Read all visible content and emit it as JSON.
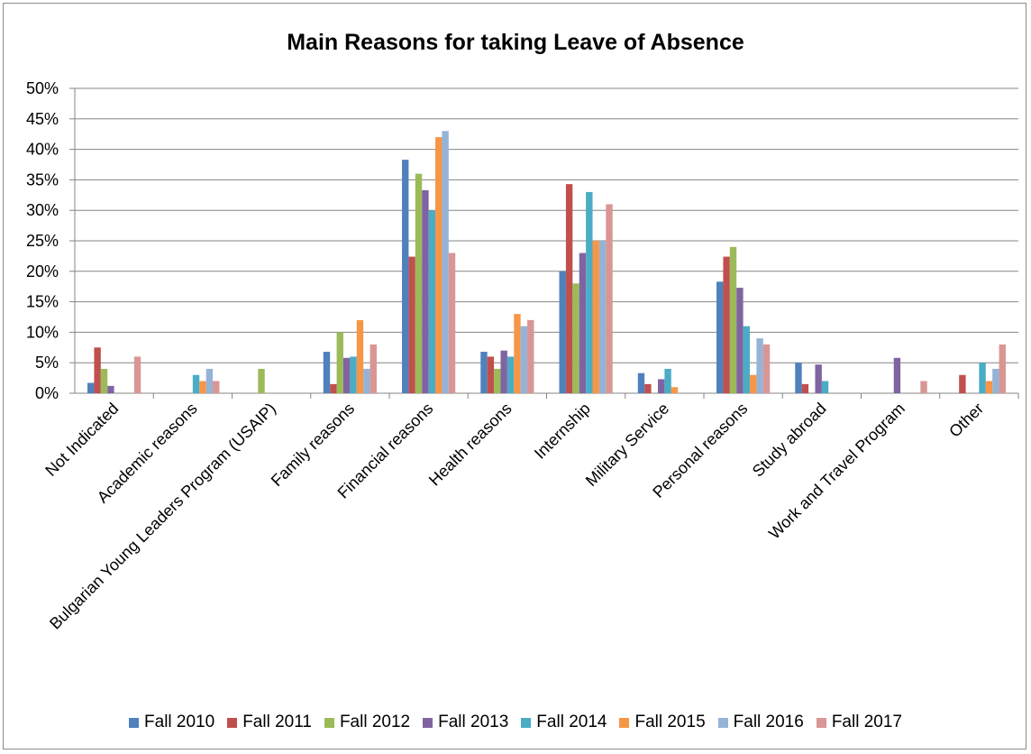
{
  "chart_data": {
    "type": "bar",
    "title": "Main Reasons for taking Leave of Absence",
    "xlabel": "",
    "ylabel": "",
    "ylim": [
      0,
      0.5
    ],
    "yticks": [
      "0%",
      "5%",
      "10%",
      "15%",
      "20%",
      "25%",
      "30%",
      "35%",
      "40%",
      "45%",
      "50%"
    ],
    "grid": true,
    "legend_position": "bottom",
    "categories": [
      "Not Indicated",
      "Academic reasons",
      "Bulgarian Young Leaders Program (USAIP)",
      "Family reasons",
      "Financial reasons",
      "Health reasons",
      "Internship",
      "Military Service",
      "Personal reasons",
      "Study abroad",
      "Work and Travel Program",
      "Other"
    ],
    "series": [
      {
        "name": "Fall 2010",
        "color": "#4f81bd",
        "values": [
          0.017,
          0,
          0,
          0.068,
          0.383,
          0.068,
          0.2,
          0.033,
          0.183,
          0.05,
          0,
          0
        ]
      },
      {
        "name": "Fall 2011",
        "color": "#c0504d",
        "values": [
          0.075,
          0,
          0,
          0.015,
          0.224,
          0.06,
          0.343,
          0.015,
          0.224,
          0.015,
          0,
          0.03
        ]
      },
      {
        "name": "Fall 2012",
        "color": "#9bbb59",
        "values": [
          0.04,
          0,
          0.04,
          0.1,
          0.36,
          0.04,
          0.18,
          0,
          0.24,
          0,
          0,
          0
        ]
      },
      {
        "name": "Fall 2013",
        "color": "#8064a2",
        "values": [
          0.012,
          0,
          0,
          0.058,
          0.333,
          0.07,
          0.23,
          0.023,
          0.173,
          0.047,
          0.058,
          0
        ]
      },
      {
        "name": "Fall 2014",
        "color": "#4bacc6",
        "values": [
          0,
          0.03,
          0,
          0.06,
          0.3,
          0.06,
          0.33,
          0.04,
          0.11,
          0.02,
          0,
          0.05
        ]
      },
      {
        "name": "Fall 2015",
        "color": "#f79646",
        "values": [
          0,
          0.02,
          0,
          0.12,
          0.42,
          0.13,
          0.25,
          0.01,
          0.03,
          0,
          0,
          0.02
        ]
      },
      {
        "name": "Fall 2016",
        "color": "#95b3d7",
        "values": [
          0,
          0.04,
          0,
          0.04,
          0.43,
          0.11,
          0.25,
          0,
          0.09,
          0,
          0,
          0.04
        ]
      },
      {
        "name": "Fall 2017",
        "color": "#d99694",
        "values": [
          0.06,
          0.02,
          0,
          0.08,
          0.23,
          0.12,
          0.31,
          0,
          0.08,
          0,
          0.02,
          0.08
        ]
      }
    ]
  }
}
